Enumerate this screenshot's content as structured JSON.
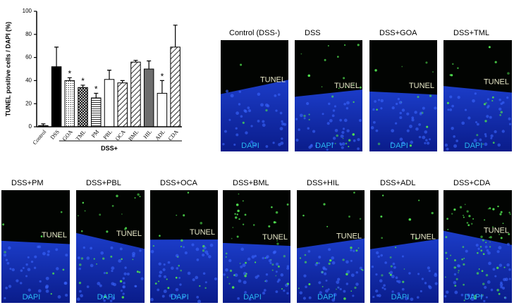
{
  "chart_data": {
    "type": "bar",
    "y_label": "TUNEL positive cells / DAPI (%)",
    "group_label": "DSS+",
    "categories": [
      "Control",
      "DSS",
      "GOA",
      "TML",
      "PM",
      "PBL",
      "OCA",
      "BML",
      "HIL",
      "ADL",
      "CDA"
    ],
    "values": [
      1,
      52,
      40,
      34,
      25,
      41,
      38,
      56,
      50,
      29,
      69
    ],
    "errors": [
      1.5,
      17,
      2.5,
      2,
      4,
      8,
      2,
      1.5,
      7,
      11,
      19
    ],
    "annotations": [
      null,
      null,
      "*",
      "*",
      "*",
      null,
      null,
      null,
      null,
      "*",
      null
    ],
    "colors": [
      "#000000",
      "#000000",
      "#ffffff",
      "#ffffff",
      "#ffffff",
      "#ffffff",
      "#ffffff",
      "#ffffff",
      "#6e6e6e",
      "#ffffff",
      "#ffffff"
    ],
    "patterns": [
      "none",
      "none",
      "dots",
      "cross",
      "hlines",
      "none",
      "diag",
      "diag",
      "none",
      "none",
      "diag"
    ],
    "ylim": [
      0,
      100
    ],
    "yticks": [
      0,
      20,
      40,
      60,
      80,
      100
    ]
  },
  "panels": [
    {
      "label": "Control (DSS-)",
      "tunel": "TUNEL",
      "dapi": "DAPI"
    },
    {
      "label": "DSS",
      "tunel": "TUNEL",
      "dapi": "DAPI"
    },
    {
      "label": "DSS+GOA",
      "tunel": "TUNEL",
      "dapi": "DAPI"
    },
    {
      "label": "DSS+TML",
      "tunel": "TUNEL",
      "dapi": "DAPI"
    },
    {
      "label": "DSS+PM",
      "tunel": "TUNEL",
      "dapi": "DAPI"
    },
    {
      "label": "DSS+PBL",
      "tunel": "TUNEL",
      "dapi": "DAPI"
    },
    {
      "label": "DSS+OCA",
      "tunel": "TUNEL",
      "dapi": "DAPI"
    },
    {
      "label": "DSS+BML",
      "tunel": "TUNEL",
      "dapi": "DAPI"
    },
    {
      "label": "DSS+HIL",
      "tunel": "TUNEL",
      "dapi": "DAPI"
    },
    {
      "label": "DSS+ADL",
      "tunel": "TUNEL",
      "dapi": "DAPI"
    },
    {
      "label": "DSS+CDA",
      "tunel": "TUNEL",
      "dapi": "DAPI"
    }
  ]
}
